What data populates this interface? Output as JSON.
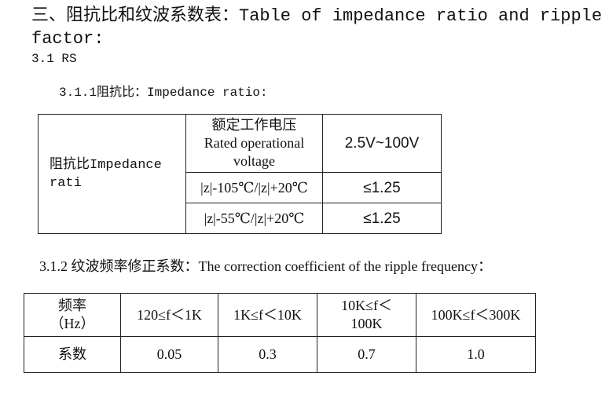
{
  "heading": "三、阻抗比和纹波系数表：Table of impedance ratio and ripple factor:",
  "section": "3.1 RS",
  "subsection1": "3.1.1阻抗比：Impedance ratio:",
  "table1": {
    "label": "阻抗比Impedance rati",
    "header_cn": "额定工作电压",
    "header_en": "Rated operational voltage",
    "header_value": "2.5V~100V",
    "rows": [
      [
        "|z|-105℃/|z|+20℃",
        "≤1.25"
      ],
      [
        "|z|-55℃/|z|+20℃",
        "≤1.25"
      ]
    ]
  },
  "subsection2": "3.1.2 纹波频率修正系数：The correction coefficient of the ripple frequency：",
  "table2": {
    "header": [
      "频率（Hz）",
      "120≤f＜1K",
      "1K≤f＜10K",
      "10K≤f＜100K",
      "100K≤f＜300K"
    ],
    "rows": [
      [
        "系数",
        "0.05",
        "0.3",
        "0.7",
        "1.0"
      ]
    ]
  }
}
